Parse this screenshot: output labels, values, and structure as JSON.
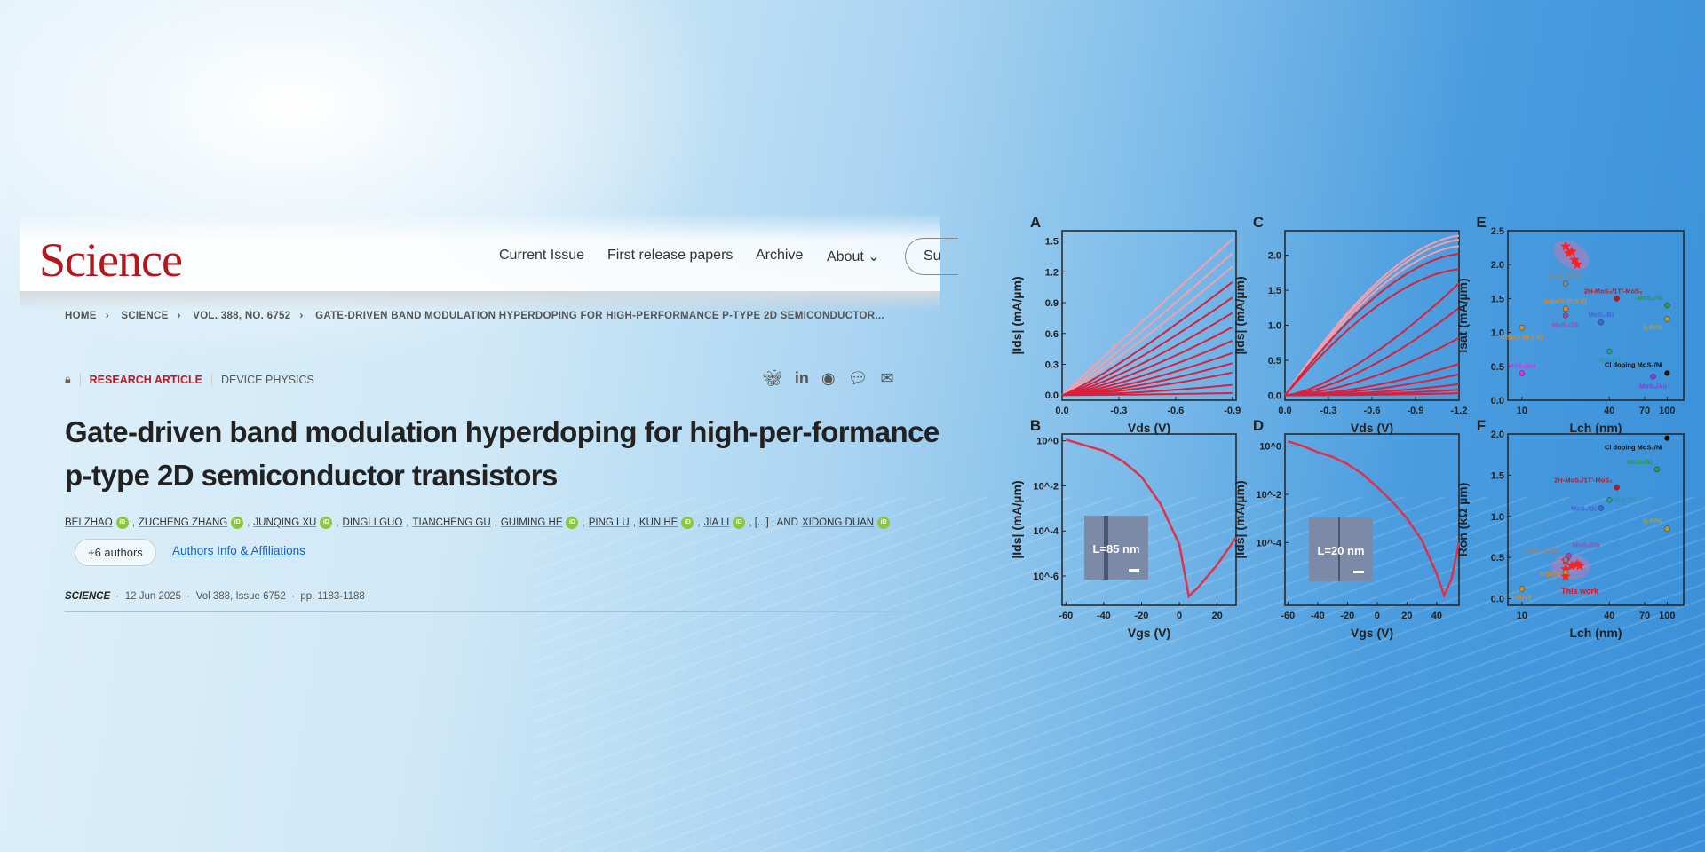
{
  "header": {
    "logo": "Science",
    "nav": [
      {
        "label": "Current Issue"
      },
      {
        "label": "First release papers"
      },
      {
        "label": "Archive"
      },
      {
        "label": "About"
      }
    ],
    "subscribe_partial": "Su"
  },
  "breadcrumb": [
    "HOME",
    "SCIENCE",
    "VOL. 388, NO. 6752",
    "GATE-DRIVEN BAND MODULATION HYPERDOPING FOR HIGH-PERFORMANCE P-TYPE 2D SEMICONDUCTOR..."
  ],
  "article": {
    "type": "RESEARCH ARTICLE",
    "category": "DEVICE PHYSICS",
    "title": "Gate-driven band modulation hyperdoping for high-per-formance p-type 2D semiconductor transistors",
    "authors": [
      {
        "name": "BEI ZHAO",
        "orcid": true
      },
      {
        "name": "ZUCHENG ZHANG",
        "orcid": true
      },
      {
        "name": "JUNQING XU",
        "orcid": true
      },
      {
        "name": "DINGLI GUO",
        "orcid": false
      },
      {
        "name": "TIANCHENG GU",
        "orcid": false
      },
      {
        "name": "GUIMING HE",
        "orcid": true
      },
      {
        "name": "PING LU",
        "orcid": false
      },
      {
        "name": "KUN HE",
        "orcid": true
      },
      {
        "name": "JIA LI",
        "orcid": true
      }
    ],
    "ellipsis": "[...]",
    "and_label": ", AND",
    "last_author": "XIDONG DUAN",
    "more_authors": "+6 authors",
    "affiliations_link": "Authors Info & Affiliations",
    "journal": "SCIENCE",
    "date": "12 Jun 2025",
    "volume": "Vol 388, Issue 6752",
    "pages": "pp. 1183-1188"
  },
  "share_icons": [
    "bluesky-icon",
    "linkedin-icon",
    "reddit-icon",
    "wechat-icon",
    "email-icon"
  ],
  "figure": {
    "A": {
      "label": "A",
      "xlabel": "Vds (V)",
      "ylabel": "|Ids| (mA/µm)",
      "xticks": [
        "0.0",
        "-0.3",
        "-0.6",
        "-0.9"
      ],
      "yticks": [
        "0.0",
        "0.3",
        "0.6",
        "0.9",
        "1.2",
        "1.5"
      ],
      "xlim": [
        0,
        -0.92
      ],
      "ylim": [
        -0.05,
        1.6
      ],
      "curve_end_values": [
        1.52,
        1.38,
        1.25,
        1.1,
        0.95,
        0.8,
        0.66,
        0.53,
        0.41,
        0.31,
        0.22,
        0.1,
        0.02
      ]
    },
    "C": {
      "label": "C",
      "xlabel": "Vds (V)",
      "ylabel": "|Ids| (mA/µm)",
      "xticks": [
        "0.0",
        "-0.3",
        "-0.6",
        "-0.9",
        "-1.2"
      ],
      "yticks": [
        "0.0",
        "0.5",
        "1.0",
        "1.5",
        "2.0"
      ],
      "xlim": [
        0,
        -1.2
      ],
      "ylim": [
        -0.07,
        2.35
      ],
      "curve_end_values": [
        2.28,
        2.22,
        2.13,
        2.02,
        1.8,
        1.6,
        1.25,
        0.82,
        0.45,
        0.3,
        0.16,
        0.08,
        0.03
      ]
    },
    "B": {
      "label": "B",
      "xlabel": "Vgs (V)",
      "ylabel": "|Ids| (mA/µm)",
      "xticks": [
        "-60",
        "-40",
        "-20",
        "0",
        "20"
      ],
      "yticks": [
        "10^0",
        "10^-2",
        "10^-4",
        "10^-6"
      ],
      "xlim": [
        -62,
        30
      ],
      "ylim_log10": [
        -7.3,
        0.3
      ],
      "curve": [
        [
          -60,
          0.05
        ],
        [
          -50,
          -0.2
        ],
        [
          -40,
          -0.45
        ],
        [
          -30,
          -0.9
        ],
        [
          -20,
          -1.6
        ],
        [
          -10,
          -2.8
        ],
        [
          0,
          -4.6
        ],
        [
          5,
          -6.9
        ],
        [
          10,
          -6.5
        ],
        [
          20,
          -5.5
        ],
        [
          30,
          -4.3
        ]
      ],
      "inset": "L=85 nm"
    },
    "D": {
      "label": "D",
      "xlabel": "Vgs (V)",
      "ylabel": "|Ids| (mA/µm)",
      "xticks": [
        "-60",
        "-40",
        "-20",
        "0",
        "20",
        "40"
      ],
      "yticks": [
        "10^0",
        "10^-2",
        "10^-4"
      ],
      "xlim": [
        -62,
        55
      ],
      "ylim_log10": [
        -6.6,
        0.5
      ],
      "curve": [
        [
          -60,
          0.2
        ],
        [
          -50,
          0
        ],
        [
          -40,
          -0.25
        ],
        [
          -30,
          -0.45
        ],
        [
          -20,
          -0.75
        ],
        [
          -10,
          -1.15
        ],
        [
          0,
          -1.7
        ],
        [
          10,
          -2.3
        ],
        [
          20,
          -3.0
        ],
        [
          30,
          -3.9
        ],
        [
          40,
          -5.3
        ],
        [
          45,
          -6.2
        ],
        [
          50,
          -5.5
        ],
        [
          55,
          -4.0
        ]
      ],
      "inset": "L=20 nm"
    },
    "E": {
      "label": "E",
      "xlabel": "Lch (nm)",
      "ylabel": "Isat (mA/µm)",
      "xticks": [
        "10",
        "40",
        "70",
        "100"
      ],
      "yticks": [
        "0.0",
        "0.5",
        "1.0",
        "1.5",
        "2.0",
        "2.5"
      ],
      "xlim": [
        8,
        130
      ],
      "ylim": [
        0,
        2.5
      ],
      "points": [
        {
          "label": "WSe₂/VSe₂",
          "x": 20,
          "y": 1.72,
          "color": "#888888"
        },
        {
          "label": "InSe/Y (0.8 V)",
          "x": 20,
          "y": 1.35,
          "color": "#e08a1e"
        },
        {
          "label": "MoS₂/Sb",
          "x": 20,
          "y": 1.25,
          "color": "#a04ab0"
        },
        {
          "label": "InSe/Y (0.5 V)",
          "x": 10,
          "y": 1.07,
          "color": "#e08a1e"
        },
        {
          "label": "2H-MoS₂/1T'-MoS₂",
          "x": 45,
          "y": 1.5,
          "color": "#c0181f"
        },
        {
          "label": "MoS₂/Ni",
          "x": 100,
          "y": 1.4,
          "color": "#2a9a3a"
        },
        {
          "label": "b-P/Ni",
          "x": 100,
          "y": 1.2,
          "color": "#b0a020"
        },
        {
          "label": "MoS₂/Bi",
          "x": 35,
          "y": 1.15,
          "color": "#3a6ad0"
        },
        {
          "label": "WS₂/Ti",
          "x": 40,
          "y": 0.72,
          "color": "#2a9a9a"
        },
        {
          "label": "MoS₂/Au",
          "x": 10,
          "y": 0.4,
          "color": "#e030e0"
        },
        {
          "label": "Cl doping MoS₂/Ni",
          "x": 100,
          "y": 0.4,
          "color": "#111111"
        },
        {
          "label": "MoS₂/Au",
          "x": 80,
          "y": 0.35,
          "color": "#9a30e0"
        }
      ],
      "this_work": [
        [
          20,
          2.27
        ],
        [
          21,
          2.17
        ],
        [
          22,
          2.19
        ],
        [
          23,
          2.07
        ],
        [
          24,
          2.0
        ]
      ]
    },
    "F": {
      "label": "F",
      "xlabel": "Lch (nm)",
      "ylabel": "Ron (kΩ µm)",
      "xticks": [
        "10",
        "40",
        "70",
        "100"
      ],
      "yticks": [
        "0.0",
        "0.5",
        "1.0",
        "1.5",
        "2.0"
      ],
      "xlim": [
        8,
        130
      ],
      "ylim": [
        -0.08,
        2.0
      ],
      "points": [
        {
          "label": "Cl doping MoS₂/Ni",
          "x": 100,
          "y": 1.95,
          "color": "#111111"
        },
        {
          "label": "MoS₂/Ni",
          "x": 85,
          "y": 1.57,
          "color": "#2a9a3a"
        },
        {
          "label": "2H-MoS₂/1T'-MoS₂",
          "x": 45,
          "y": 1.35,
          "color": "#c0181f"
        },
        {
          "label": "WS₂/Ti",
          "x": 40,
          "y": 1.2,
          "color": "#2a9a9a"
        },
        {
          "label": "MoS₂/Bi",
          "x": 35,
          "y": 1.1,
          "color": "#3a6ad0"
        },
        {
          "label": "b-P/Ni",
          "x": 100,
          "y": 0.85,
          "color": "#b0a020"
        },
        {
          "label": "WSe₂/VSe₂",
          "x": 20,
          "y": 0.47,
          "color": "#888888"
        },
        {
          "label": "MoS₂/Sb",
          "x": 21,
          "y": 0.52,
          "color": "#a04ab0"
        },
        {
          "label": "InSe/Y",
          "x": 20,
          "y": 0.32,
          "color": "#e08a1e"
        },
        {
          "label": "InSe/Y",
          "x": 10,
          "y": 0.12,
          "color": "#e08a1e"
        }
      ],
      "this_work": [
        [
          20,
          0.46
        ],
        [
          20,
          0.36
        ],
        [
          20,
          0.27
        ],
        [
          22,
          0.4
        ],
        [
          24,
          0.42
        ],
        [
          25,
          0.4
        ]
      ],
      "this_work_label": "This work"
    }
  },
  "colors": {
    "brand": "#b5161e",
    "link": "#1a5fc4",
    "orcid": "#8cc63f",
    "curve": "#e0304a"
  }
}
